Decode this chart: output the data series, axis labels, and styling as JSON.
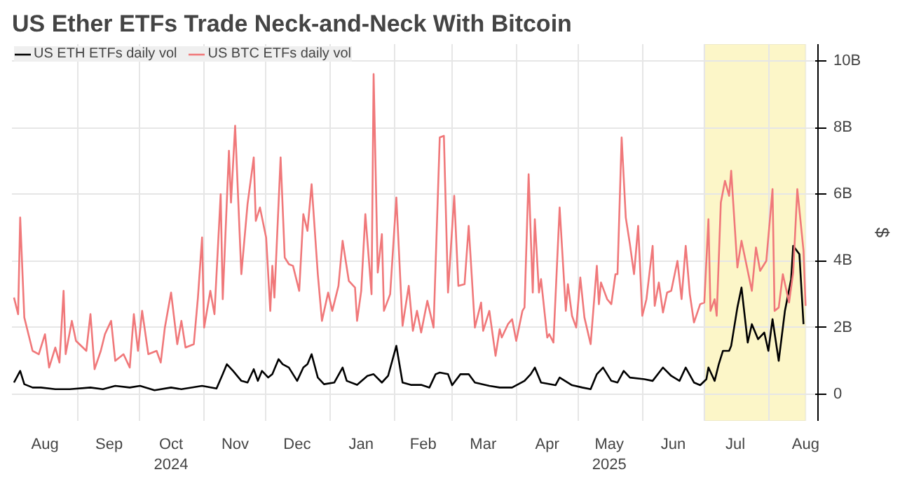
{
  "chart_data": {
    "type": "line",
    "title": "US Ether ETFs Trade Neck-and-Neck With Bitcoin",
    "ylabel": "$",
    "xlim": [
      "2024-07-31",
      "2025-08-25"
    ],
    "ylim": [
      -0.8,
      10.5
    ],
    "xticks": [
      {
        "value": "2024-08-16",
        "label": "Aug"
      },
      {
        "value": "2024-09-01",
        "label": null
      },
      {
        "value": "2024-09-16",
        "label": "Sep"
      },
      {
        "value": "2024-10-01",
        "label": null
      },
      {
        "value": "2024-10-16",
        "label": "Oct\n2024"
      },
      {
        "value": "2024-11-01",
        "label": null
      },
      {
        "value": "2024-11-16",
        "label": "Nov"
      },
      {
        "value": "2024-12-01",
        "label": null
      },
      {
        "value": "2024-12-16",
        "label": "Dec"
      },
      {
        "value": "2025-01-01",
        "label": null
      },
      {
        "value": "2025-01-16",
        "label": "Jan"
      },
      {
        "value": "2025-02-01",
        "label": null
      },
      {
        "value": "2025-02-15",
        "label": "Feb"
      },
      {
        "value": "2025-03-01",
        "label": null
      },
      {
        "value": "2025-03-16",
        "label": "Mar"
      },
      {
        "value": "2025-04-01",
        "label": null
      },
      {
        "value": "2025-04-16",
        "label": "Apr"
      },
      {
        "value": "2025-05-01",
        "label": null
      },
      {
        "value": "2025-05-16",
        "label": "May\n2025"
      },
      {
        "value": "2025-06-01",
        "label": null
      },
      {
        "value": "2025-06-16",
        "label": "Jun"
      },
      {
        "value": "2025-07-01",
        "label": null
      },
      {
        "value": "2025-07-16",
        "label": "Jul"
      },
      {
        "value": "2025-08-01",
        "label": null
      },
      {
        "value": "2025-08-19",
        "label": "Aug"
      }
    ],
    "yticks": [
      {
        "value": 0,
        "label": "0"
      },
      {
        "value": 2,
        "label": "2B"
      },
      {
        "value": 4,
        "label": "4B"
      },
      {
        "value": 6,
        "label": "6B"
      },
      {
        "value": 8,
        "label": "8B"
      },
      {
        "value": 10,
        "label": "10B"
      }
    ],
    "grid": true,
    "legend": "top left",
    "marker": "none",
    "line_style": "solid",
    "bands": [
      {
        "axis": "x",
        "from": "2025-07-01",
        "to": "2025-08-19",
        "color": "#fcf6c8"
      }
    ],
    "series": [
      {
        "name": "US ETH ETFs daily vol",
        "color": "#000000",
        "x": [
          "2024-08-01",
          "2024-08-04",
          "2024-08-06",
          "2024-08-10",
          "2024-08-14",
          "2024-08-21",
          "2024-08-28",
          "2024-09-07",
          "2024-09-13",
          "2024-09-19",
          "2024-09-26",
          "2024-10-01",
          "2024-10-08",
          "2024-10-16",
          "2024-10-21",
          "2024-10-31",
          "2024-11-07",
          "2024-11-10",
          "2024-11-12",
          "2024-11-15",
          "2024-11-19",
          "2024-11-22",
          "2024-11-25",
          "2024-11-27",
          "2024-11-29",
          "2024-12-02",
          "2024-12-04",
          "2024-12-07",
          "2024-12-09",
          "2024-12-12",
          "2024-12-16",
          "2024-12-19",
          "2024-12-21",
          "2024-12-23",
          "2024-12-26",
          "2024-12-29",
          "2025-01-03",
          "2025-01-07",
          "2025-01-09",
          "2025-01-14",
          "2025-01-19",
          "2025-01-22",
          "2025-01-26",
          "2025-01-29",
          "2025-02-02",
          "2025-02-05",
          "2025-02-09",
          "2025-02-14",
          "2025-02-18",
          "2025-02-21",
          "2025-02-23",
          "2025-02-27",
          "2025-03-01",
          "2025-03-05",
          "2025-03-09",
          "2025-03-12",
          "2025-03-19",
          "2025-03-24",
          "2025-03-30",
          "2025-04-05",
          "2025-04-08",
          "2025-04-10",
          "2025-04-13",
          "2025-04-20",
          "2025-04-22",
          "2025-04-28",
          "2025-05-03",
          "2025-05-07",
          "2025-05-10",
          "2025-05-13",
          "2025-05-17",
          "2025-05-20",
          "2025-05-23",
          "2025-05-26",
          "2025-06-02",
          "2025-06-06",
          "2025-06-11",
          "2025-06-15",
          "2025-06-19",
          "2025-06-22",
          "2025-06-26",
          "2025-06-29",
          "2025-07-02",
          "2025-07-03",
          "2025-07-06",
          "2025-07-08",
          "2025-07-10",
          "2025-07-13",
          "2025-07-14",
          "2025-07-17",
          "2025-07-19",
          "2025-07-22",
          "2025-07-24",
          "2025-07-27",
          "2025-07-30",
          "2025-08-01",
          "2025-08-03",
          "2025-08-06",
          "2025-08-09",
          "2025-08-12",
          "2025-08-13",
          "2025-08-16",
          "2025-08-18"
        ],
        "values": [
          0.35,
          0.7,
          0.3,
          0.2,
          0.2,
          0.15,
          0.15,
          0.2,
          0.15,
          0.25,
          0.2,
          0.25,
          0.12,
          0.2,
          0.15,
          0.25,
          0.17,
          0.6,
          0.9,
          0.7,
          0.4,
          0.35,
          0.75,
          0.4,
          0.7,
          0.5,
          0.6,
          1.05,
          0.9,
          0.8,
          0.4,
          0.8,
          0.9,
          1.2,
          0.5,
          0.3,
          0.35,
          0.8,
          0.4,
          0.28,
          0.55,
          0.6,
          0.35,
          0.55,
          1.45,
          0.35,
          0.28,
          0.28,
          0.2,
          0.6,
          0.65,
          0.6,
          0.27,
          0.6,
          0.6,
          0.35,
          0.25,
          0.2,
          0.2,
          0.4,
          0.6,
          0.8,
          0.35,
          0.27,
          0.5,
          0.27,
          0.2,
          0.15,
          0.6,
          0.8,
          0.4,
          0.35,
          0.7,
          0.5,
          0.45,
          0.4,
          0.8,
          0.55,
          0.4,
          0.8,
          0.35,
          0.27,
          0.45,
          0.8,
          0.4,
          0.9,
          1.3,
          1.3,
          1.45,
          2.6,
          3.2,
          1.55,
          2.1,
          1.65,
          1.85,
          1.3,
          2.25,
          1.0,
          2.5,
          3.45,
          4.45,
          4.2,
          2.1
        ]
      },
      {
        "name": "US BTC ETFs daily vol",
        "color": "#f0787a",
        "x": [
          "2024-08-01",
          "2024-08-03",
          "2024-08-04",
          "2024-08-06",
          "2024-08-08",
          "2024-08-10",
          "2024-08-13",
          "2024-08-16",
          "2024-08-18",
          "2024-08-21",
          "2024-08-23",
          "2024-08-25",
          "2024-08-26",
          "2024-08-29",
          "2024-08-31",
          "2024-09-05",
          "2024-09-07",
          "2024-09-09",
          "2024-09-12",
          "2024-09-14",
          "2024-09-17",
          "2024-09-19",
          "2024-09-23",
          "2024-09-26",
          "2024-09-28",
          "2024-09-30",
          "2024-10-02",
          "2024-10-05",
          "2024-10-09",
          "2024-10-11",
          "2024-10-13",
          "2024-10-16",
          "2024-10-19",
          "2024-10-21",
          "2024-10-23",
          "2024-10-27",
          "2024-10-29",
          "2024-10-31",
          "2024-11-01",
          "2024-11-04",
          "2024-11-06",
          "2024-11-09",
          "2024-11-10",
          "2024-11-13",
          "2024-11-14",
          "2024-11-16",
          "2024-11-19",
          "2024-11-22",
          "2024-11-25",
          "2024-11-26",
          "2024-11-28",
          "2024-12-01",
          "2024-12-03",
          "2024-12-04",
          "2024-12-05",
          "2024-12-08",
          "2024-12-10",
          "2024-12-12",
          "2024-12-14",
          "2024-12-17",
          "2024-12-19",
          "2024-12-21",
          "2024-12-23",
          "2024-12-26",
          "2024-12-28",
          "2024-12-31",
          "2025-01-02",
          "2025-01-05",
          "2025-01-07",
          "2025-01-10",
          "2025-01-13",
          "2025-01-14",
          "2025-01-16",
          "2025-01-18",
          "2025-01-21",
          "2025-01-22",
          "2025-01-24",
          "2025-01-26",
          "2025-01-27",
          "2025-01-30",
          "2025-02-02",
          "2025-02-05",
          "2025-02-08",
          "2025-02-10",
          "2025-02-12",
          "2025-02-14",
          "2025-02-17",
          "2025-02-20",
          "2025-02-21",
          "2025-02-23",
          "2025-02-25",
          "2025-02-27",
          "2025-03-02",
          "2025-03-04",
          "2025-03-07",
          "2025-03-09",
          "2025-03-12",
          "2025-03-15",
          "2025-03-16",
          "2025-03-19",
          "2025-03-22",
          "2025-03-24",
          "2025-03-25",
          "2025-03-28",
          "2025-03-30",
          "2025-04-01",
          "2025-04-04",
          "2025-04-05",
          "2025-04-07",
          "2025-04-09",
          "2025-04-10",
          "2025-04-12",
          "2025-04-13",
          "2025-04-16",
          "2025-04-17",
          "2025-04-19",
          "2025-04-22",
          "2025-04-25",
          "2025-04-26",
          "2025-04-28",
          "2025-04-30",
          "2025-05-02",
          "2025-05-04",
          "2025-05-07",
          "2025-05-10",
          "2025-05-11",
          "2025-05-12",
          "2025-05-15",
          "2025-05-17",
          "2025-05-19",
          "2025-05-20",
          "2025-05-22",
          "2025-05-24",
          "2025-05-26",
          "2025-05-28",
          "2025-05-30",
          "2025-06-01",
          "2025-06-03",
          "2025-06-06",
          "2025-06-07",
          "2025-06-09",
          "2025-06-11",
          "2025-06-13",
          "2025-06-15",
          "2025-06-18",
          "2025-06-20",
          "2025-06-22",
          "2025-06-24",
          "2025-06-26",
          "2025-06-29",
          "2025-07-01",
          "2025-07-03",
          "2025-07-04",
          "2025-07-06",
          "2025-07-07",
          "2025-07-09",
          "2025-07-11",
          "2025-07-13",
          "2025-07-14",
          "2025-07-17",
          "2025-07-19",
          "2025-07-21",
          "2025-07-24",
          "2025-07-26",
          "2025-07-28",
          "2025-07-31",
          "2025-08-03",
          "2025-08-04",
          "2025-08-06",
          "2025-08-08",
          "2025-08-11",
          "2025-08-13",
          "2025-08-15",
          "2025-08-18",
          "2025-08-19"
        ],
        "values": [
          2.9,
          2.4,
          5.3,
          2.3,
          1.8,
          1.3,
          1.2,
          1.8,
          0.8,
          1.4,
          0.95,
          3.1,
          1.2,
          2.2,
          1.6,
          1.3,
          2.4,
          0.75,
          1.3,
          1.8,
          2.2,
          1.0,
          1.2,
          0.8,
          2.4,
          1.3,
          2.5,
          1.2,
          1.3,
          0.95,
          2.0,
          3.05,
          1.5,
          2.2,
          1.4,
          1.5,
          2.9,
          4.7,
          2.0,
          3.1,
          2.4,
          6.0,
          2.85,
          7.3,
          5.75,
          8.05,
          3.6,
          5.7,
          7.1,
          5.2,
          5.6,
          4.7,
          2.5,
          3.85,
          2.9,
          7.1,
          4.1,
          3.9,
          3.85,
          3.1,
          5.4,
          4.9,
          6.3,
          3.6,
          2.2,
          3.05,
          2.5,
          3.25,
          4.6,
          3.4,
          3.2,
          2.2,
          3.1,
          5.4,
          3.0,
          9.6,
          3.65,
          4.8,
          2.5,
          3.0,
          5.9,
          2.05,
          3.25,
          1.9,
          2.5,
          1.85,
          2.8,
          2.0,
          3.9,
          7.7,
          7.75,
          3.05,
          5.95,
          3.25,
          3.3,
          5.05,
          2.0,
          2.75,
          1.9,
          2.5,
          1.15,
          1.95,
          1.7,
          2.1,
          2.25,
          1.6,
          2.5,
          2.6,
          6.6,
          3.05,
          5.25,
          3.05,
          3.45,
          1.7,
          1.8,
          1.55,
          5.6,
          2.5,
          3.3,
          2.35,
          2.0,
          3.5,
          2.3,
          1.5,
          3.85,
          2.7,
          3.35,
          2.85,
          2.7,
          3.6,
          3.6,
          7.7,
          5.3,
          4.5,
          3.6,
          5.05,
          2.35,
          2.85,
          4.45,
          2.65,
          3.35,
          2.45,
          3.05,
          3.1,
          4.0,
          2.85,
          4.45,
          3.0,
          2.15,
          2.7,
          2.75,
          5.25,
          2.5,
          2.85,
          2.35,
          5.75,
          6.4,
          5.95,
          6.7,
          3.8,
          4.6,
          4.0,
          3.1,
          4.4,
          3.7,
          4.0,
          6.15,
          2.5,
          2.6,
          3.6,
          2.75,
          3.65,
          6.15,
          4.3,
          2.65
        ]
      }
    ]
  }
}
